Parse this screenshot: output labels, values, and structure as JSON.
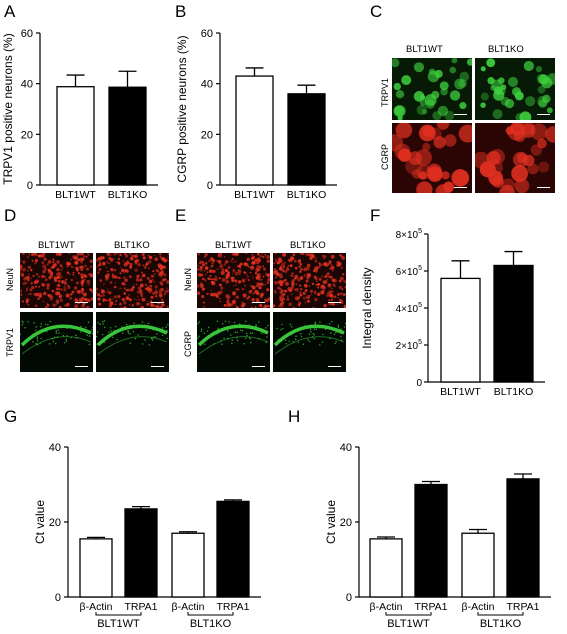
{
  "panels": {
    "A": "A",
    "B": "B",
    "C": "C",
    "D": "D",
    "E": "E",
    "F": "F",
    "G": "G",
    "H": "H"
  },
  "colors": {
    "open_bar": "#ffffff",
    "filled_bar": "#000000",
    "green_stain": "#3dcf3d",
    "red_stain": "#e03020"
  },
  "micrographs": {
    "C": {
      "columns": [
        "BLT1WT",
        "BLT1KO"
      ],
      "rows": [
        "TRPV1",
        "CGRP"
      ]
    },
    "D": {
      "columns": [
        "BLT1WT",
        "BLT1KO"
      ],
      "rows": [
        "NeuN",
        "TRPV1"
      ]
    },
    "E": {
      "columns": [
        "BLT1WT",
        "BLT1KO"
      ],
      "rows": [
        "NeuN",
        "CGRP"
      ]
    }
  },
  "chart_data": [
    {
      "panel": "A",
      "type": "bar",
      "categories": [
        "BLT1WT",
        "BLT1KO"
      ],
      "values": [
        38.8,
        38.6
      ],
      "errors": [
        4.6,
        6.3
      ],
      "ylabel": "TRPV1 positive neurons (%)",
      "ylim": [
        0,
        60
      ],
      "yticks": [
        "0",
        "20",
        "40",
        "60"
      ],
      "fills": [
        "#ffffff",
        "#000000"
      ]
    },
    {
      "panel": "B",
      "type": "bar",
      "categories": [
        "BLT1WT",
        "BLT1KO"
      ],
      "values": [
        43.0,
        36.0
      ],
      "errors": [
        3.2,
        3.4
      ],
      "ylabel": "CGRP positive neurons (%)",
      "ylim": [
        0,
        60
      ],
      "yticks": [
        "0",
        "20",
        "40",
        "60"
      ],
      "fills": [
        "#ffffff",
        "#000000"
      ]
    },
    {
      "panel": "F",
      "type": "bar",
      "categories": [
        "BLT1WT",
        "BLT1KO"
      ],
      "values": [
        560000,
        630000
      ],
      "errors": [
        95000,
        75000
      ],
      "ylabel": "Integral density",
      "ylim": [
        0,
        800000
      ],
      "yticks": [
        {
          "mantissa": "0",
          "exponent": ""
        },
        {
          "mantissa": "2×10",
          "exponent": "5"
        },
        {
          "mantissa": "4×10",
          "exponent": "5"
        },
        {
          "mantissa": "6×10",
          "exponent": "5"
        },
        {
          "mantissa": "8×10",
          "exponent": "5"
        }
      ],
      "fills": [
        "#ffffff",
        "#000000"
      ]
    },
    {
      "panel": "G",
      "type": "bar",
      "categories": [
        "β-Actin",
        "TRPA1",
        "β-Actin",
        "TRPA1"
      ],
      "groups": [
        "BLT1WT",
        "BLT1KO"
      ],
      "values": [
        15.5,
        23.5,
        17.0,
        25.5
      ],
      "errors": [
        0.4,
        0.6,
        0.4,
        0.4
      ],
      "ylabel": "Ct value",
      "ylim": [
        0,
        40
      ],
      "yticks": [
        "0",
        "20",
        "40"
      ],
      "fills": [
        "#ffffff",
        "#000000",
        "#ffffff",
        "#000000"
      ]
    },
    {
      "panel": "H",
      "type": "bar",
      "categories": [
        "β-Actin",
        "TRPA1",
        "β-Actin",
        "TRPA1"
      ],
      "groups": [
        "BLT1WT",
        "BLT1KO"
      ],
      "values": [
        15.5,
        30.0,
        17.0,
        31.5
      ],
      "errors": [
        0.5,
        0.8,
        1.0,
        1.3
      ],
      "ylabel": "Ct value",
      "ylim": [
        0,
        40
      ],
      "yticks": [
        "0",
        "20",
        "40"
      ],
      "fills": [
        "#ffffff",
        "#000000",
        "#ffffff",
        "#000000"
      ]
    }
  ]
}
